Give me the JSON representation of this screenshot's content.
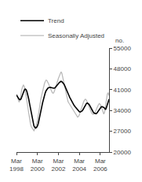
{
  "chart_data": {
    "type": "line",
    "ylabel": "no.",
    "categories": [
      "Mar\n1998",
      null,
      null,
      null,
      null,
      null,
      null,
      null,
      null,
      null,
      null,
      null,
      null,
      null,
      null,
      null,
      null,
      null,
      null,
      null,
      null,
      null,
      null,
      null,
      "Mar\n2000",
      null,
      null,
      null,
      null,
      null,
      null,
      null,
      null,
      null,
      null,
      null,
      null,
      null,
      null,
      null,
      null,
      null,
      null,
      null,
      null,
      null,
      null,
      null,
      "Mar\n2002",
      null,
      null,
      null,
      null,
      null,
      null,
      null,
      null,
      null,
      null,
      null,
      null,
      null,
      null,
      null,
      null,
      null,
      null,
      null,
      null,
      null,
      null,
      null,
      "Mar\n2004",
      null,
      null,
      null,
      null,
      null,
      null,
      null,
      null,
      null,
      null,
      null,
      null,
      null,
      null,
      null,
      null,
      null,
      null,
      null,
      null,
      null,
      null,
      null,
      "Mar\n2006",
      null,
      null,
      null,
      null,
      null,
      null,
      null,
      null,
      null,
      null
    ],
    "series": [
      {
        "name": "Trend",
        "color": "#000000",
        "values": [
          39200,
          38700,
          38200,
          37800,
          37600,
          37800,
          38500,
          39400,
          40200,
          40900,
          41200,
          41000,
          40300,
          39300,
          37900,
          36300,
          34600,
          32800,
          31200,
          29800,
          28800,
          28300,
          28100,
          28300,
          28800,
          29700,
          30900,
          32300,
          33800,
          35300,
          36700,
          38000,
          39100,
          40000,
          40700,
          41200,
          41500,
          41700,
          41800,
          41800,
          41700,
          41600,
          41500,
          41500,
          41600,
          41900,
          42200,
          42600,
          43000,
          43400,
          43700,
          43800,
          43700,
          43400,
          43000,
          42500,
          41900,
          41200,
          40500,
          39800,
          39100,
          38400,
          37800,
          37200,
          36700,
          36200,
          35700,
          35300,
          34900,
          34500,
          34100,
          33800,
          33600,
          33500,
          33600,
          33800,
          34200,
          34700,
          35300,
          35900,
          36300,
          36500,
          36400,
          36100,
          35600,
          35000,
          34400,
          33900,
          33400,
          33100,
          32900,
          32900,
          33100,
          33500,
          34000,
          34500,
          34900,
          35200,
          35300,
          35200,
          35000,
          34700,
          34300,
          35000,
          36000,
          37000,
          37800
        ]
      },
      {
        "name": "Seasonally Adjusted",
        "color": "#bbbbbb",
        "values": [
          39500,
          38500,
          37200,
          36800,
          37500,
          39500,
          41000,
          42000,
          42500,
          42000,
          40800,
          39000,
          37000,
          34800,
          33000,
          31000,
          29500,
          28500,
          28000,
          27500,
          27200,
          27800,
          28500,
          29500,
          30500,
          32000,
          34000,
          36000,
          38000,
          39500,
          40800,
          42000,
          43000,
          43800,
          44200,
          44000,
          43500,
          42800,
          42000,
          41200,
          40500,
          40000,
          39800,
          40200,
          41000,
          42000,
          43200,
          44000,
          44800,
          45500,
          46500,
          47000,
          46500,
          45000,
          43500,
          42000,
          40500,
          39000,
          37800,
          37000,
          36500,
          36000,
          35500,
          35000,
          34500,
          34000,
          33500,
          33000,
          32500,
          32000,
          31800,
          32000,
          32500,
          33500,
          34500,
          35500,
          36300,
          37000,
          37500,
          37800,
          37500,
          37000,
          36200,
          35300,
          34500,
          33800,
          33200,
          32800,
          32700,
          32900,
          33300,
          34000,
          34800,
          35500,
          36000,
          36300,
          36000,
          35300,
          34300,
          33300,
          32800,
          33500,
          36000,
          38000,
          39500,
          40000,
          39000
        ]
      }
    ],
    "ylim": [
      20000,
      55000
    ],
    "yticks": [
      20000,
      27000,
      34000,
      41000,
      48000,
      55000
    ],
    "grid": false,
    "legend": "upper left"
  }
}
